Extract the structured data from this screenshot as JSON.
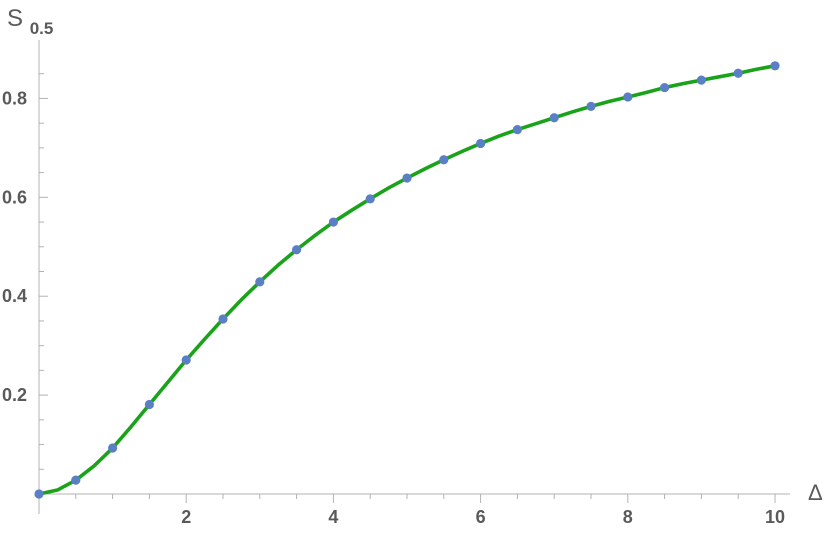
{
  "chart_data": {
    "type": "line",
    "title": "",
    "xlabel": "Δ",
    "ylabel": {
      "base": "S",
      "subscript": "0.5"
    },
    "xlim": [
      0,
      10
    ],
    "ylim": [
      0,
      0.9
    ],
    "x_ticks": [
      2,
      4,
      6,
      8,
      10
    ],
    "x_tick_labels": [
      "2",
      "4",
      "6",
      "8",
      "10"
    ],
    "y_ticks": [
      0.2,
      0.4,
      0.6,
      0.8
    ],
    "y_tick_labels": [
      "0.2",
      "0.4",
      "0.6",
      "0.8"
    ],
    "grid": false,
    "series": [
      {
        "kind": "line",
        "color": "#1aa31a",
        "x": [
          0,
          0.25,
          0.5,
          0.75,
          1,
          1.25,
          1.5,
          1.75,
          2,
          2.25,
          2.5,
          2.75,
          3,
          3.25,
          3.5,
          3.75,
          4,
          4.25,
          4.5,
          4.75,
          5,
          5.25,
          5.5,
          5.75,
          6,
          6.25,
          6.5,
          6.75,
          7,
          7.25,
          7.5,
          7.75,
          8,
          8.25,
          8.5,
          8.75,
          9,
          9.25,
          9.5,
          9.75,
          10
        ],
        "y": [
          0,
          0.008,
          0.028,
          0.057,
          0.093,
          0.136,
          0.181,
          0.226,
          0.271,
          0.313,
          0.354,
          0.393,
          0.429,
          0.463,
          0.494,
          0.523,
          0.55,
          0.574,
          0.597,
          0.619,
          0.639,
          0.658,
          0.676,
          0.693,
          0.709,
          0.724,
          0.737,
          0.749,
          0.761,
          0.773,
          0.784,
          0.794,
          0.803,
          0.812,
          0.822,
          0.83,
          0.837,
          0.844,
          0.851,
          0.859,
          0.866
        ]
      },
      {
        "kind": "scatter",
        "color": "#5b7fc4",
        "x": [
          0,
          0.5,
          1,
          1.5,
          2,
          2.5,
          3,
          3.5,
          4,
          4.5,
          5,
          5.5,
          6,
          6.5,
          7,
          7.5,
          8,
          8.5,
          9,
          9.5,
          10
        ],
        "y": [
          0,
          0.028,
          0.093,
          0.181,
          0.271,
          0.354,
          0.429,
          0.494,
          0.55,
          0.597,
          0.639,
          0.676,
          0.709,
          0.737,
          0.761,
          0.784,
          0.803,
          0.822,
          0.837,
          0.851,
          0.866
        ]
      }
    ]
  }
}
